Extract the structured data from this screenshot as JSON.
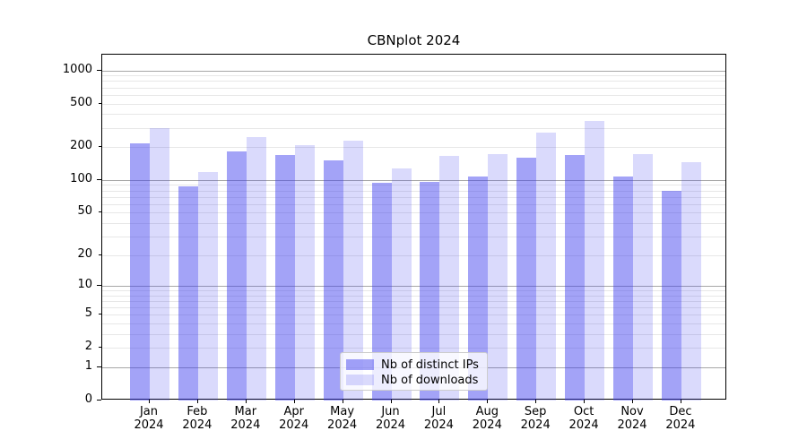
{
  "chart_data": {
    "type": "bar",
    "title": "CBNplot 2024",
    "categories": [
      "Jan",
      "Feb",
      "Mar",
      "Apr",
      "May",
      "Jun",
      "Jul",
      "Aug",
      "Sep",
      "Oct",
      "Nov",
      "Dec"
    ],
    "year_suffix": "2024",
    "series": [
      {
        "name": "Nb of distinct IPs",
        "values": [
          215,
          87,
          183,
          171,
          151,
          94,
          97,
          107,
          161,
          170,
          108,
          80
        ]
      },
      {
        "name": "Nb of downloads",
        "values": [
          298,
          119,
          245,
          210,
          231,
          127,
          166,
          174,
          271,
          348,
          172,
          145
        ]
      }
    ],
    "yscale": "symlog",
    "ytick_labels": [
      "0",
      "1",
      "2",
      "5",
      "10",
      "20",
      "50",
      "100",
      "200",
      "500",
      "1000"
    ],
    "ytick_values": [
      0,
      1,
      2,
      5,
      10,
      20,
      50,
      100,
      200,
      500,
      1000
    ],
    "major_grid_values": [
      1,
      10,
      100,
      1000
    ],
    "minor_grid_values": [
      2,
      3,
      4,
      5,
      6,
      7,
      8,
      9,
      20,
      30,
      40,
      50,
      60,
      70,
      80,
      90,
      200,
      300,
      400,
      500,
      600,
      700,
      800,
      900
    ],
    "ylim": [
      0,
      1430
    ],
    "grid": true,
    "legend_position": "lower center"
  },
  "colors": {
    "bar_dark": "rgba(60,60,238,0.47)",
    "bar_light": "rgba(60,60,238,0.19)",
    "grid_major": "#a6a6a6",
    "grid_minor": "#e7e7e7",
    "spine": "#000000"
  }
}
